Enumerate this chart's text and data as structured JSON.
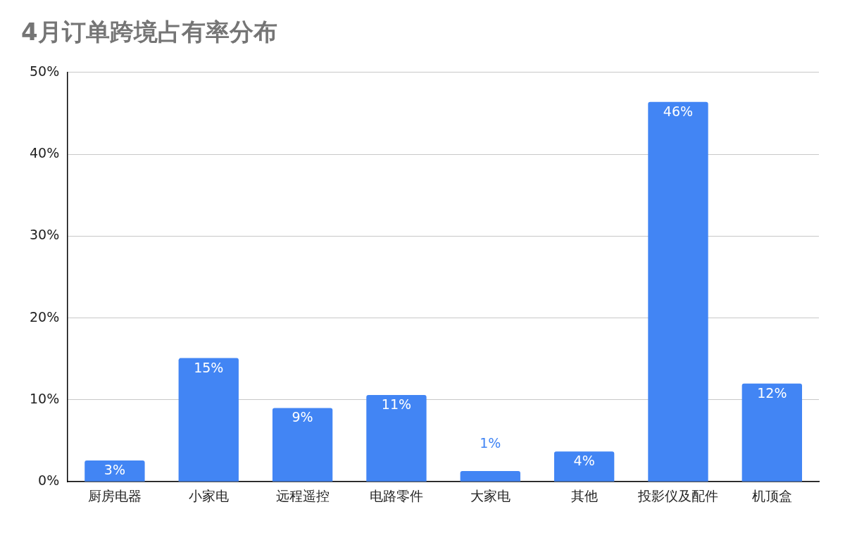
{
  "chart_data": {
    "type": "bar",
    "title": "4月订单跨境占有率分布",
    "categories": [
      "厨房电器",
      "小家电",
      "远程遥控",
      "电路零件",
      "大家电",
      "其他",
      "投影仪及配件",
      "机顶盒"
    ],
    "values": [
      2.6,
      15.1,
      9,
      10.6,
      1.3,
      3.7,
      46.4,
      12
    ],
    "value_labels": [
      "3%",
      "15%",
      "9%",
      "11%",
      "1%",
      "4%",
      "46%",
      "12%"
    ],
    "color": "#4285f4",
    "ylim": [
      0,
      50
    ],
    "yticks": [
      {
        "value": 0,
        "label": "0%"
      },
      {
        "value": 10,
        "label": "10%"
      },
      {
        "value": 20,
        "label": "20%"
      },
      {
        "value": 30,
        "label": "30%"
      },
      {
        "value": 40,
        "label": "40%"
      },
      {
        "value": 50,
        "label": "50%"
      }
    ],
    "grid": "y",
    "legend": false
  }
}
